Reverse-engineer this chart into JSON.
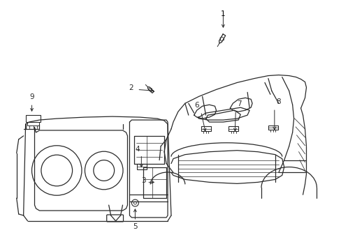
{
  "bg_color": "#ffffff",
  "line_color": "#2a2a2a",
  "label_color": "#000000",
  "lw": 0.9,
  "arrow_lw": 0.7,
  "font_size": 7.5
}
